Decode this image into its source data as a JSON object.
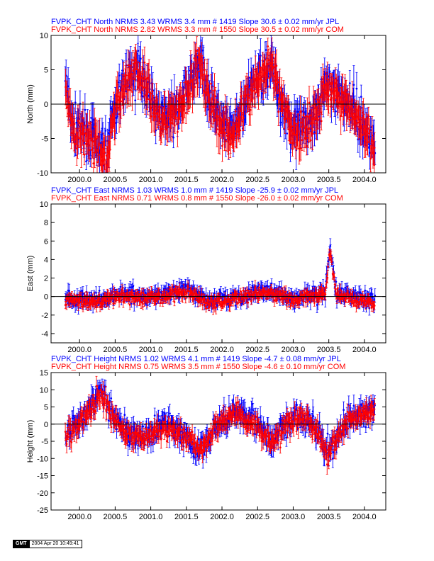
{
  "colors": {
    "jpl": "#0000ff",
    "com": "#ff0000",
    "zero_line": "#000000"
  },
  "footer": {
    "logo": "GMT",
    "timestamp": "2004 Apr 20 10:49:41"
  },
  "chart_data": [
    {
      "type": "scatter",
      "panel": "north",
      "header_lines": [
        "FVPK_CHT North NRMS 3.43 WRMS  3.4 mm # 1419 Slope   30.6 ±  0.02 mm/yr JPL",
        "FVPK_CHT North NRMS 2.82 WRMS  3.3 mm # 1550 Slope   30.5 ±  0.02 mm/yr COM"
      ],
      "ylabel": "North (mm)",
      "xlim": [
        1999.6,
        2004.3
      ],
      "ylim": [
        -10,
        10
      ],
      "x_ticks": [
        "2000.0",
        "2000.5",
        "2001.0",
        "2001.5",
        "2002.0",
        "2002.5",
        "2003.0",
        "2003.5",
        "2004.0"
      ],
      "y_ticks": [
        "-10",
        "-5",
        "0",
        "5",
        "10"
      ],
      "series": [
        {
          "name": "JPL",
          "color": "#0000ff",
          "n": 1419,
          "wrms_mm": 3.4,
          "profile": [
            [
              1999.8,
              3
            ],
            [
              1999.9,
              -3
            ],
            [
              2000.1,
              -4.5
            ],
            [
              2000.3,
              -6.5
            ],
            [
              2000.38,
              -7.5
            ],
            [
              2000.5,
              0
            ],
            [
              2000.7,
              4.5
            ],
            [
              2000.85,
              5
            ],
            [
              2001.0,
              1
            ],
            [
              2001.2,
              -2
            ],
            [
              2001.35,
              -1.5
            ],
            [
              2001.5,
              2
            ],
            [
              2001.7,
              6.5
            ],
            [
              2001.8,
              2
            ],
            [
              2002.0,
              -2.5
            ],
            [
              2002.1,
              -4
            ],
            [
              2002.2,
              -3
            ],
            [
              2002.35,
              1
            ],
            [
              2002.55,
              5
            ],
            [
              2002.7,
              5.5
            ],
            [
              2002.85,
              0
            ],
            [
              2003.0,
              -4
            ],
            [
              2003.2,
              -3
            ],
            [
              2003.45,
              2
            ],
            [
              2003.55,
              2.5
            ],
            [
              2003.7,
              1
            ],
            [
              2003.9,
              -1.5
            ],
            [
              2004.1,
              -5
            ],
            [
              2004.15,
              -6.5
            ]
          ]
        },
        {
          "name": "COM",
          "color": "#ff0000",
          "n": 1550,
          "wrms_mm": 3.3,
          "profile": [
            [
              1999.8,
              2.5
            ],
            [
              1999.9,
              -3.5
            ],
            [
              2000.1,
              -5
            ],
            [
              2000.3,
              -7
            ],
            [
              2000.38,
              -8
            ],
            [
              2000.5,
              -0.5
            ],
            [
              2000.7,
              4
            ],
            [
              2000.85,
              4.5
            ],
            [
              2001.0,
              0.5
            ],
            [
              2001.2,
              -2.5
            ],
            [
              2001.35,
              -2
            ],
            [
              2001.5,
              1.5
            ],
            [
              2001.7,
              6
            ],
            [
              2001.8,
              1.5
            ],
            [
              2002.0,
              -3
            ],
            [
              2002.1,
              -4.5
            ],
            [
              2002.2,
              -3.5
            ],
            [
              2002.35,
              0.5
            ],
            [
              2002.55,
              4.5
            ],
            [
              2002.7,
              5
            ],
            [
              2002.85,
              -0.5
            ],
            [
              2003.0,
              -4.5
            ],
            [
              2003.2,
              -3.5
            ],
            [
              2003.45,
              1.5
            ],
            [
              2003.55,
              2
            ],
            [
              2003.7,
              0.5
            ],
            [
              2003.9,
              -2
            ],
            [
              2004.1,
              -5.5
            ],
            [
              2004.15,
              -7
            ]
          ]
        }
      ]
    },
    {
      "type": "scatter",
      "panel": "east",
      "header_lines": [
        "FVPK_CHT East NRMS 1.03 WRMS  1.0 mm # 1419 Slope  -25.9 ±  0.02 mm/yr JPL",
        "FVPK_CHT East NRMS 0.71 WRMS  0.8 mm # 1550 Slope  -26.0 ±  0.02 mm/yr COM"
      ],
      "ylabel": "East (mm)",
      "xlim": [
        1999.6,
        2004.3
      ],
      "ylim": [
        -5,
        10
      ],
      "x_ticks": [
        "2000.0",
        "2000.5",
        "2001.0",
        "2001.5",
        "2002.0",
        "2002.5",
        "2003.0",
        "2003.5",
        "2004.0"
      ],
      "y_ticks": [
        "-4",
        "-2",
        "0",
        "2",
        "4",
        "6",
        "8",
        "10"
      ],
      "series": [
        {
          "name": "JPL",
          "color": "#0000ff",
          "n": 1419,
          "wrms_mm": 1.0,
          "profile": [
            [
              1999.8,
              0
            ],
            [
              2000.2,
              -0.5
            ],
            [
              2000.6,
              0.3
            ],
            [
              2001.0,
              0
            ],
            [
              2001.5,
              0.8
            ],
            [
              2001.8,
              -0.5
            ],
            [
              2002.2,
              0
            ],
            [
              2002.6,
              0.8
            ],
            [
              2003.0,
              -0.3
            ],
            [
              2003.45,
              0.5
            ],
            [
              2003.52,
              5.5
            ],
            [
              2003.6,
              0.5
            ],
            [
              2004.15,
              -0.5
            ]
          ]
        },
        {
          "name": "COM",
          "color": "#ff0000",
          "n": 1550,
          "wrms_mm": 0.8,
          "profile": [
            [
              1999.8,
              -0.2
            ],
            [
              2000.2,
              -0.7
            ],
            [
              2000.6,
              0.1
            ],
            [
              2001.0,
              -0.2
            ],
            [
              2001.5,
              0.6
            ],
            [
              2001.8,
              -0.7
            ],
            [
              2002.2,
              -0.2
            ],
            [
              2002.6,
              0.6
            ],
            [
              2003.0,
              -0.5
            ],
            [
              2003.45,
              0.3
            ],
            [
              2003.52,
              5
            ],
            [
              2003.6,
              0.3
            ],
            [
              2004.15,
              -0.7
            ]
          ]
        }
      ]
    },
    {
      "type": "scatter",
      "panel": "height",
      "header_lines": [
        "FVPK_CHT Height NRMS 1.02 WRMS  4.1 mm # 1419 Slope   -4.7 ±  0.08 mm/yr JPL",
        "FVPK_CHT Height NRMS 0.75 WRMS  3.5 mm # 1550 Slope   -4.6 ±  0.10 mm/yr COM"
      ],
      "ylabel": "Height (mm)",
      "xlim": [
        1999.6,
        2004.3
      ],
      "ylim": [
        -25,
        15
      ],
      "x_ticks": [
        "2000.0",
        "2000.5",
        "2001.0",
        "2001.5",
        "2002.0",
        "2002.5",
        "2003.0",
        "2003.5",
        "2004.0"
      ],
      "y_ticks": [
        "-25",
        "-20",
        "-15",
        "-10",
        "-5",
        "0",
        "5",
        "10",
        "15"
      ],
      "series": [
        {
          "name": "JPL",
          "color": "#0000ff",
          "n": 1419,
          "wrms_mm": 4.1,
          "profile": [
            [
              1999.8,
              -3
            ],
            [
              2000.1,
              3
            ],
            [
              2000.3,
              10
            ],
            [
              2000.45,
              3
            ],
            [
              2000.7,
              -3
            ],
            [
              2000.9,
              -4
            ],
            [
              2001.2,
              0
            ],
            [
              2001.5,
              -3
            ],
            [
              2001.7,
              -8
            ],
            [
              2001.9,
              -1
            ],
            [
              2002.2,
              4
            ],
            [
              2002.5,
              0
            ],
            [
              2002.7,
              -5
            ],
            [
              2002.9,
              0
            ],
            [
              2003.1,
              3
            ],
            [
              2003.3,
              -1
            ],
            [
              2003.5,
              -8
            ],
            [
              2003.8,
              2
            ],
            [
              2004.15,
              4
            ]
          ]
        },
        {
          "name": "COM",
          "color": "#ff0000",
          "n": 1550,
          "wrms_mm": 3.5,
          "profile": [
            [
              1999.8,
              -3.5
            ],
            [
              2000.1,
              2.5
            ],
            [
              2000.3,
              9
            ],
            [
              2000.45,
              2.5
            ],
            [
              2000.7,
              -3.5
            ],
            [
              2000.9,
              -4.5
            ],
            [
              2001.2,
              -0.5
            ],
            [
              2001.5,
              -3.5
            ],
            [
              2001.7,
              -8.5
            ],
            [
              2001.9,
              -1.5
            ],
            [
              2002.2,
              3.5
            ],
            [
              2002.5,
              -0.5
            ],
            [
              2002.7,
              -5.5
            ],
            [
              2002.9,
              -0.5
            ],
            [
              2003.1,
              2.5
            ],
            [
              2003.3,
              -1.5
            ],
            [
              2003.5,
              -8.5
            ],
            [
              2003.8,
              1.5
            ],
            [
              2004.15,
              3.5
            ]
          ]
        }
      ]
    }
  ]
}
